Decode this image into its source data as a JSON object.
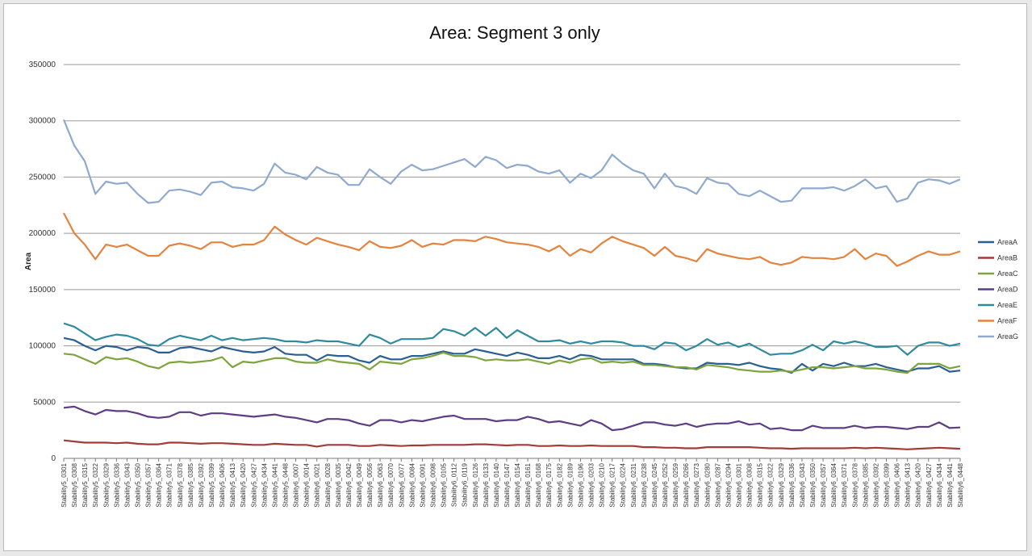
{
  "chart_data": {
    "type": "line",
    "title": "Area: Segment 3 only",
    "xlabel": "",
    "ylabel": "Area",
    "ylim": [
      0,
      350000
    ],
    "yticks": [
      "0",
      "50000",
      "100000",
      "150000",
      "200000",
      "250000",
      "300000",
      "350000"
    ],
    "grid": true,
    "legend_position": "right",
    "categories": [
      "Stability5_0301",
      "Stability5_0308",
      "Stability5_0315",
      "Stability5_0322",
      "Stability5_0329",
      "Stability5_0336",
      "Stability5_0343",
      "Stability5_0350",
      "Stability5_0357",
      "Stability5_0364",
      "Stability5_0371",
      "Stability5_0378",
      "Stability5_0385",
      "Stability5_0392",
      "Stability5_0399",
      "Stability5_0406",
      "Stability5_0413",
      "Stability5_0420",
      "Stability5_0427",
      "Stability5_0434",
      "Stability5_0441",
      "Stability5_0448",
      "Stability6_0007",
      "Stability6_0014",
      "Stability6_0021",
      "Stability6_0028",
      "Stability6_0035",
      "Stability6_0042",
      "Stability6_0049",
      "Stability6_0056",
      "Stability6_0063",
      "Stability6_0070",
      "Stability6_0077",
      "Stability6_0084",
      "Stability6_0091",
      "Stability6_0098",
      "Stability6_0105",
      "Stability6_0112",
      "Stability6_0119",
      "Stability6_0126",
      "Stability6_0133",
      "Stability6_0140",
      "Stability6_0147",
      "Stability6_0154",
      "Stability6_0161",
      "Stability6_0168",
      "Stability6_0175",
      "Stability6_0182",
      "Stability6_0189",
      "Stability6_0196",
      "Stability6_0203",
      "Stability6_0210",
      "Stability6_0217",
      "Stability6_0224",
      "Stability6_0231",
      "Stability6_0238",
      "Stability6_0245",
      "Stability6_0252",
      "Stability6_0259",
      "Stability6_0266",
      "Stability6_0273",
      "Stability6_0280",
      "Stability6_0287",
      "Stability6_0294",
      "Stability6_0301",
      "Stability6_0308",
      "Stability6_0315",
      "Stability6_0322",
      "Stability6_0329",
      "Stability6_0336",
      "Stability6_0343",
      "Stability6_0350",
      "Stability6_0357",
      "Stability6_0364",
      "Stability6_0371",
      "Stability6_0378",
      "Stability6_0385",
      "Stability6_0392",
      "Stability6_0399",
      "Stability6_0406",
      "Stability6_0413",
      "Stability6_0420",
      "Stability6_0427",
      "Stability6_0434",
      "Stability6_0441",
      "Stability6_0448"
    ],
    "series": [
      {
        "name": "AreaA",
        "color": "#2a5f93",
        "values": [
          107000,
          105000,
          100000,
          96000,
          100000,
          99000,
          96000,
          99000,
          98000,
          94000,
          94000,
          98000,
          99000,
          97000,
          95000,
          99000,
          97000,
          95000,
          94000,
          95000,
          99000,
          93000,
          92000,
          92000,
          87000,
          92000,
          91000,
          91000,
          87000,
          85000,
          91000,
          88000,
          88000,
          91000,
          91000,
          93000,
          95000,
          93000,
          93000,
          97000,
          95000,
          93000,
          91000,
          94000,
          92000,
          89000,
          89000,
          91000,
          88000,
          92000,
          91000,
          88000,
          88000,
          88000,
          88000,
          84000,
          84000,
          83000,
          81000,
          80000,
          80000,
          85000,
          84000,
          84000,
          83000,
          85000,
          82000,
          80000,
          79000,
          76000,
          84000,
          78000,
          84000,
          82000,
          85000,
          82000,
          82000,
          84000,
          81000,
          79000,
          77000,
          80000,
          80000,
          82000,
          77000,
          78000
        ]
      },
      {
        "name": "AreaB",
        "color": "#a33b36",
        "values": [
          16000,
          15000,
          14000,
          14000,
          14000,
          13500,
          14000,
          13000,
          12500,
          12500,
          14000,
          14000,
          13500,
          13000,
          13500,
          13500,
          13000,
          12500,
          12000,
          12000,
          13000,
          12500,
          12000,
          12000,
          10500,
          12000,
          12000,
          12000,
          11000,
          11000,
          12000,
          11500,
          11000,
          11500,
          11500,
          12000,
          12000,
          12000,
          12000,
          12500,
          12500,
          12000,
          11500,
          12000,
          12000,
          11000,
          11000,
          11500,
          11000,
          11000,
          11500,
          11000,
          11000,
          11000,
          11000,
          10000,
          10000,
          9500,
          9500,
          9000,
          9000,
          10000,
          10000,
          10000,
          10000,
          10000,
          9500,
          9000,
          9000,
          8500,
          9000,
          9000,
          9000,
          9000,
          9000,
          9500,
          9000,
          9500,
          9000,
          8500,
          8000,
          8500,
          9000,
          9500,
          9000,
          8500
        ]
      },
      {
        "name": "AreaC",
        "color": "#7ea43b",
        "values": [
          93000,
          92000,
          88000,
          84000,
          90000,
          88000,
          89000,
          86000,
          82000,
          80000,
          85000,
          86000,
          85000,
          86000,
          87000,
          90000,
          81000,
          86000,
          85000,
          87000,
          89000,
          89000,
          86000,
          85000,
          85000,
          88000,
          86000,
          85000,
          84000,
          79000,
          86000,
          85000,
          84000,
          88000,
          89000,
          91000,
          94000,
          91000,
          91000,
          90000,
          87000,
          88000,
          87000,
          87000,
          88000,
          86000,
          84000,
          87000,
          85000,
          88000,
          89000,
          85000,
          86000,
          85000,
          86000,
          83000,
          83000,
          82000,
          81000,
          81000,
          79000,
          83000,
          82000,
          81000,
          79000,
          78000,
          77000,
          77000,
          78000,
          77000,
          79000,
          81000,
          81000,
          80000,
          81000,
          82000,
          80000,
          80000,
          79000,
          77000,
          76000,
          84000,
          84000,
          84000,
          80000,
          82000
        ]
      },
      {
        "name": "AreaD",
        "color": "#5d3d83",
        "values": [
          45000,
          46000,
          42000,
          39000,
          43000,
          42000,
          42000,
          40000,
          37000,
          36000,
          37000,
          41000,
          41000,
          38000,
          40000,
          40000,
          39000,
          38000,
          37000,
          38000,
          39000,
          37000,
          36000,
          34000,
          32000,
          35000,
          35000,
          34000,
          31000,
          29000,
          34000,
          34000,
          32000,
          34000,
          33000,
          35000,
          37000,
          38000,
          35000,
          35000,
          35000,
          33000,
          34000,
          34000,
          37000,
          35000,
          32000,
          33000,
          31000,
          29000,
          34000,
          31000,
          25000,
          26000,
          29000,
          32000,
          32000,
          30000,
          29000,
          31000,
          28000,
          30000,
          31000,
          31000,
          33000,
          30000,
          31000,
          26000,
          27000,
          25000,
          25000,
          29000,
          27000,
          27000,
          27000,
          29000,
          27000,
          28000,
          28000,
          27000,
          26000,
          28000,
          28000,
          32000,
          27000,
          27500
        ]
      },
      {
        "name": "AreaE",
        "color": "#2f8a9e",
        "values": [
          120000,
          117000,
          111000,
          105000,
          108000,
          110000,
          109000,
          106000,
          101000,
          100000,
          106000,
          109000,
          107000,
          105000,
          109000,
          105000,
          107000,
          105000,
          106000,
          107000,
          106000,
          104000,
          104000,
          103000,
          105000,
          104000,
          104000,
          102000,
          100000,
          110000,
          107000,
          102000,
          106000,
          106000,
          106000,
          107000,
          115000,
          113000,
          109000,
          116000,
          109000,
          116000,
          107000,
          114000,
          109000,
          104000,
          104000,
          105000,
          102000,
          104000,
          102000,
          104000,
          104000,
          103000,
          100000,
          100000,
          97000,
          103000,
          102000,
          96000,
          100000,
          106000,
          101000,
          103000,
          99000,
          102000,
          97000,
          92000,
          93000,
          93000,
          96000,
          101000,
          96000,
          104000,
          102000,
          104000,
          102000,
          99000,
          99000,
          100000,
          92000,
          100000,
          103000,
          103000,
          100000,
          102000
        ]
      },
      {
        "name": "AreaF",
        "color": "#e5833e",
        "values": [
          218000,
          200000,
          190000,
          177000,
          190000,
          188000,
          190000,
          185000,
          180000,
          180000,
          189000,
          191000,
          189000,
          186000,
          192000,
          192000,
          188000,
          190000,
          190000,
          194000,
          206000,
          199000,
          194000,
          190000,
          196000,
          193000,
          190000,
          188000,
          185000,
          193000,
          188000,
          187000,
          189000,
          194000,
          188000,
          191000,
          190000,
          194000,
          194000,
          193000,
          197000,
          195000,
          192000,
          191000,
          190000,
          188000,
          184000,
          189000,
          180000,
          186000,
          183000,
          191000,
          197000,
          193000,
          190000,
          187000,
          180000,
          188000,
          180000,
          178000,
          175000,
          186000,
          182000,
          180000,
          178000,
          177000,
          179000,
          174000,
          172000,
          174000,
          179000,
          178000,
          178000,
          177000,
          179000,
          186000,
          177000,
          182000,
          180000,
          171000,
          175000,
          180000,
          184000,
          181000,
          181000,
          184000
        ]
      },
      {
        "name": "AreaG",
        "color": "#90a9cf",
        "values": [
          301000,
          278000,
          264000,
          235000,
          246000,
          244000,
          245000,
          235000,
          227000,
          228000,
          238000,
          239000,
          237000,
          234000,
          245000,
          246000,
          241000,
          240000,
          238000,
          244000,
          262000,
          254000,
          252000,
          248000,
          259000,
          254000,
          252000,
          243000,
          243000,
          257000,
          250000,
          244000,
          255000,
          261000,
          256000,
          257000,
          260000,
          263000,
          266000,
          259000,
          268000,
          265000,
          258000,
          261000,
          260000,
          255000,
          253000,
          256000,
          245000,
          253000,
          249000,
          256000,
          270000,
          262000,
          256000,
          253000,
          240000,
          253000,
          242000,
          240000,
          235000,
          249000,
          245000,
          244000,
          235000,
          233000,
          238000,
          233000,
          228000,
          229000,
          240000,
          240000,
          240000,
          241000,
          238000,
          242000,
          248000,
          240000,
          242000,
          228000,
          231000,
          245000,
          248000,
          247000,
          244000,
          248000
        ]
      }
    ]
  }
}
